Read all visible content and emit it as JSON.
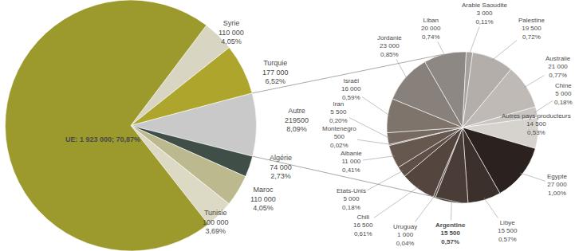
{
  "chart_data": [
    {
      "type": "pie",
      "categories": [
        "Syrie",
        "Turquie",
        "Autre",
        "Algérie",
        "Maroc",
        "Tunisie",
        "UE"
      ],
      "values": [
        110000,
        177000,
        219500,
        74000,
        110000,
        100000,
        1923000
      ],
      "value_labels": [
        "Syrie\n110 000\n4,05%",
        "Turquie\n177 000\n6,52%",
        "Autre\n219500\n8,09%",
        "Algérie\n74 000\n2,73%",
        "Maroc\n110 000\n4,05%",
        "Tunisie\n100 000\n3,69%",
        "UE: 1 923 000; 70,87%"
      ],
      "colors": [
        "#d8d5c3",
        "#ada52c",
        "#c9c9c9",
        "#3f4f47",
        "#bdb98f",
        "#dcd9c4",
        "#9c9a2c"
      ],
      "data_labels": true
    },
    {
      "type": "pie",
      "categories": [
        "Liban",
        "Arabie Saoudite",
        "Palestine",
        "Australie",
        "Chine",
        "Autres pays producteurs",
        "Egypte",
        "Libye",
        "Argentine",
        "Uruguay",
        "Chili",
        "Etats-Unis",
        "Albanie",
        "Montenegro",
        "Iran",
        "Israël",
        "Jordanie"
      ],
      "values": [
        20000,
        3000,
        19500,
        21000,
        5000,
        14500,
        27000,
        15500,
        15500,
        1000,
        16500,
        5000,
        11000,
        500,
        5500,
        16000,
        23000
      ],
      "value_labels": [
        "Liban\n20 000\n0,74%",
        "Arabie Saoudite\n3 000\n0,11%",
        "Palestine\n19 500\n0,72%",
        "Australie\n21 000\n0,77%",
        "Chine\n5 000\n0,18%",
        "Autres pays producteurs\n14 500\n0,53%",
        "Egypte\n27 000\n1,00%",
        "Libye\n15 500\n0,57%",
        "Argentine\n15 500\n0,57%",
        "Uruguay\n1 000\n0,04%",
        "Chili\n16 500\n0,61%",
        "Etats-Unis\n5 000\n0,18%",
        "Albanie\n11 000\n0,41%",
        "Montenegro\n500\n0,02%",
        "Iran\n5 500\n0,20%",
        "Israël\n16 000\n0,59%",
        "Jordanie\n23 000\n0,85%"
      ],
      "colors": [
        "#8e8884",
        "#a6a19d",
        "#b3aeaa",
        "#bfbab6",
        "#cac6c2",
        "#d6d2ce",
        "#2b2220",
        "#3b302c",
        "#4a3d37",
        "#574940",
        "#54463e",
        "#5e5048",
        "#66584f",
        "#6e6058",
        "#766a62",
        "#7f746c",
        "#88817b"
      ],
      "data_labels": true
    }
  ]
}
